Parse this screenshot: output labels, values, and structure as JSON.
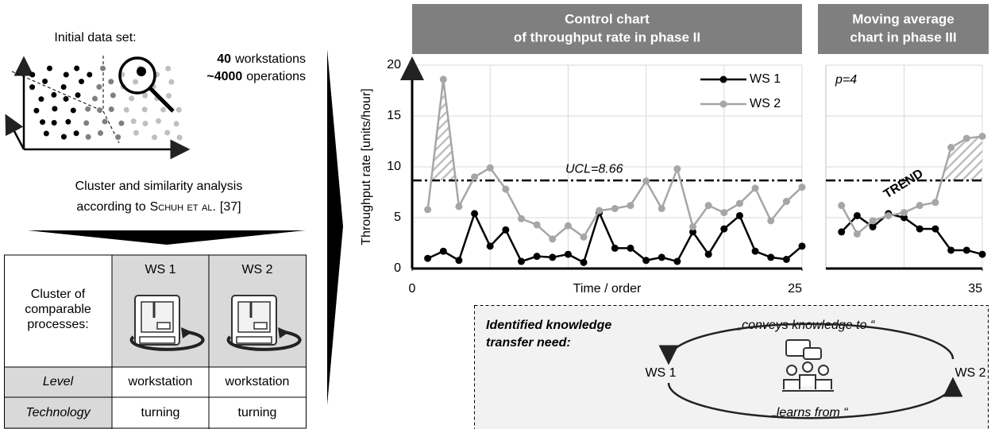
{
  "left": {
    "intro": "Initial data set:",
    "stats": [
      {
        "number": "40",
        "label": "workstations"
      },
      {
        "number": "~4000",
        "label": "operations"
      }
    ],
    "method": "Cluster and similarity analysis",
    "according": "according to",
    "author": "Schuh et al.",
    "ref": "[37]"
  },
  "table": {
    "corner": [
      "Cluster of",
      "comparable",
      "processes:"
    ],
    "columns": [
      "WS 1",
      "WS 2"
    ],
    "rows": [
      {
        "label": "Level",
        "cells": [
          "workstation",
          "workstation"
        ]
      },
      {
        "label": "Technology",
        "cells": [
          "turning",
          "turning"
        ]
      }
    ]
  },
  "chart_data": [
    {
      "type": "line",
      "title": [
        "Control chart",
        "of throughput rate in phase II"
      ],
      "ylabel": "Throughput rate [units/hour]",
      "xlabel": "Time / order",
      "x": [
        1,
        2,
        3,
        4,
        5,
        6,
        7,
        8,
        9,
        10,
        11,
        12,
        13,
        14,
        15,
        16,
        17,
        18,
        19,
        20,
        21,
        22,
        23,
        24,
        25
      ],
      "xlim": [
        0,
        25
      ],
      "xticks": [
        0,
        25
      ],
      "xgrid": [
        5,
        10,
        15,
        20
      ],
      "ylim": [
        0,
        20
      ],
      "yticks": [
        0,
        5,
        10,
        15,
        20
      ],
      "ucl": {
        "value": 8.66,
        "label": "UCL=8.66"
      },
      "legend": "upper right",
      "series": [
        {
          "name": "WS 1",
          "color": "#000000",
          "values": [
            1.0,
            1.7,
            0.8,
            5.4,
            2.2,
            3.8,
            0.7,
            1.2,
            1.1,
            1.4,
            0.6,
            5.5,
            2.0,
            2.0,
            0.8,
            1.1,
            0.7,
            3.6,
            1.4,
            3.9,
            5.2,
            1.7,
            1.1,
            0.9,
            2.2
          ]
        },
        {
          "name": "WS 2",
          "color": "#a6a6a6",
          "values": [
            5.8,
            18.6,
            6.1,
            9.0,
            9.9,
            7.8,
            4.9,
            4.3,
            2.9,
            4.2,
            3.1,
            5.7,
            5.9,
            6.2,
            8.6,
            5.9,
            9.8,
            4.1,
            6.2,
            5.5,
            6.4,
            7.9,
            4.7,
            6.6,
            8.0
          ]
        }
      ]
    },
    {
      "type": "line",
      "title": [
        "Moving average",
        "chart in phase III"
      ],
      "annotations": [
        "p=4",
        "TREND"
      ],
      "x": [
        26,
        27,
        28,
        29,
        30,
        31,
        32,
        33,
        34,
        35
      ],
      "xlim": [
        25,
        35
      ],
      "xticks": [
        35
      ],
      "xgrid": [
        30
      ],
      "ylim": [
        0,
        20
      ],
      "yticks": [
        0,
        5,
        10,
        15,
        20
      ],
      "ucl": 8.66,
      "series": [
        {
          "color": "#000000",
          "values": [
            3.6,
            5.2,
            4.1,
            5.4,
            5.0,
            3.9,
            3.9,
            1.8,
            1.8,
            1.4
          ]
        },
        {
          "color": "#a6a6a6",
          "values": [
            6.2,
            3.4,
            4.7,
            5.2,
            5.5,
            6.2,
            6.5,
            11.9,
            12.8,
            13.0
          ]
        }
      ]
    }
  ],
  "transfer": {
    "title": [
      "Identified knowledge",
      "transfer need:"
    ],
    "top": "„conveys knowledge to “",
    "bottom": "„learns from “",
    "from": "WS 1",
    "to": "WS 2"
  }
}
